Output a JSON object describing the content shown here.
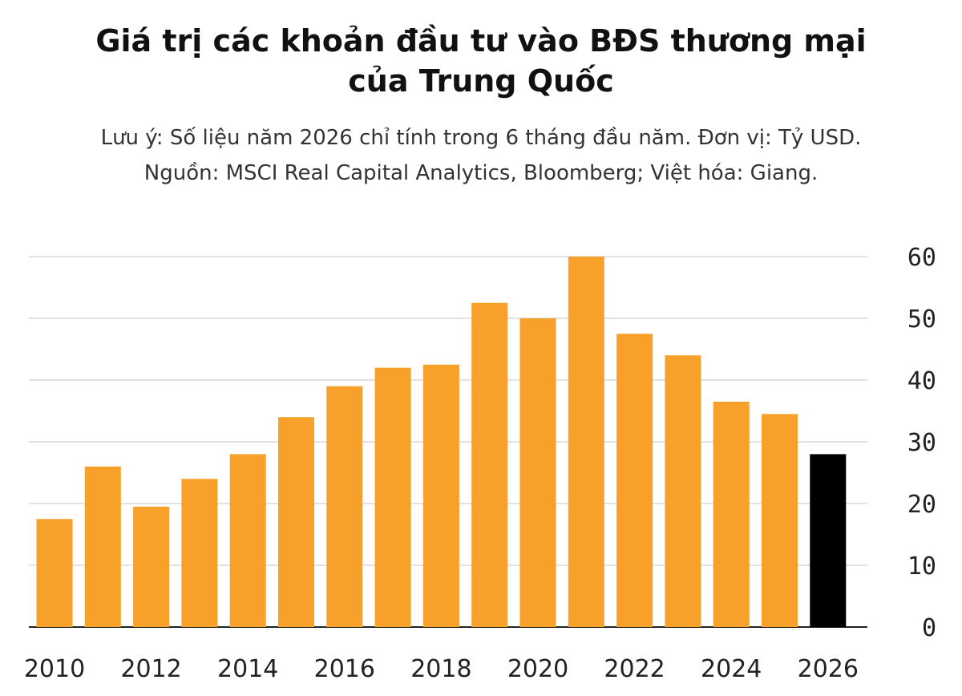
{
  "chart_data": {
    "type": "bar",
    "title": "Giá trị các khoản đầu tư vào BĐS thương mại của Trung Quốc",
    "title_lines": [
      "Giá trị các khoản đầu tư vào BĐS thương mại",
      "của Trung Quốc"
    ],
    "subtitle_lines": [
      "Lưu ý: Số liệu năm 2026 chỉ tính trong 6 tháng đầu năm. Đơn vị: Tỷ USD.",
      "Nguồn: MSCI Real Capital Analytics, Bloomberg; Việt hóa: Giang."
    ],
    "xlabel": "",
    "ylabel": "",
    "categories": [
      "2010",
      "2011",
      "2012",
      "2013",
      "2014",
      "2015",
      "2016",
      "2017",
      "2018",
      "2019",
      "2020",
      "2021",
      "2022",
      "2023",
      "2024",
      "2025",
      "2026"
    ],
    "values": [
      17.5,
      26,
      19.5,
      24,
      28,
      34,
      39,
      42,
      42.5,
      52.5,
      50,
      60,
      47.5,
      44,
      36.5,
      34.5,
      28
    ],
    "bar_colors": [
      "#f7a12b",
      "#f7a12b",
      "#f7a12b",
      "#f7a12b",
      "#f7a12b",
      "#f7a12b",
      "#f7a12b",
      "#f7a12b",
      "#f7a12b",
      "#f7a12b",
      "#f7a12b",
      "#f7a12b",
      "#f7a12b",
      "#f7a12b",
      "#f7a12b",
      "#f7a12b",
      "#000000"
    ],
    "x_tick_labels": [
      "2010",
      "2012",
      "2014",
      "2016",
      "2018",
      "2020",
      "2022",
      "2024",
      "2026"
    ],
    "y_ticks": [
      0,
      10,
      20,
      30,
      40,
      50,
      60
    ],
    "y_tick_labels": [
      "0",
      "10",
      "20",
      "30",
      "40",
      "50",
      "60"
    ],
    "ylim": [
      0,
      60
    ],
    "y_axis_side": "right",
    "grid": true,
    "legend": "none"
  }
}
